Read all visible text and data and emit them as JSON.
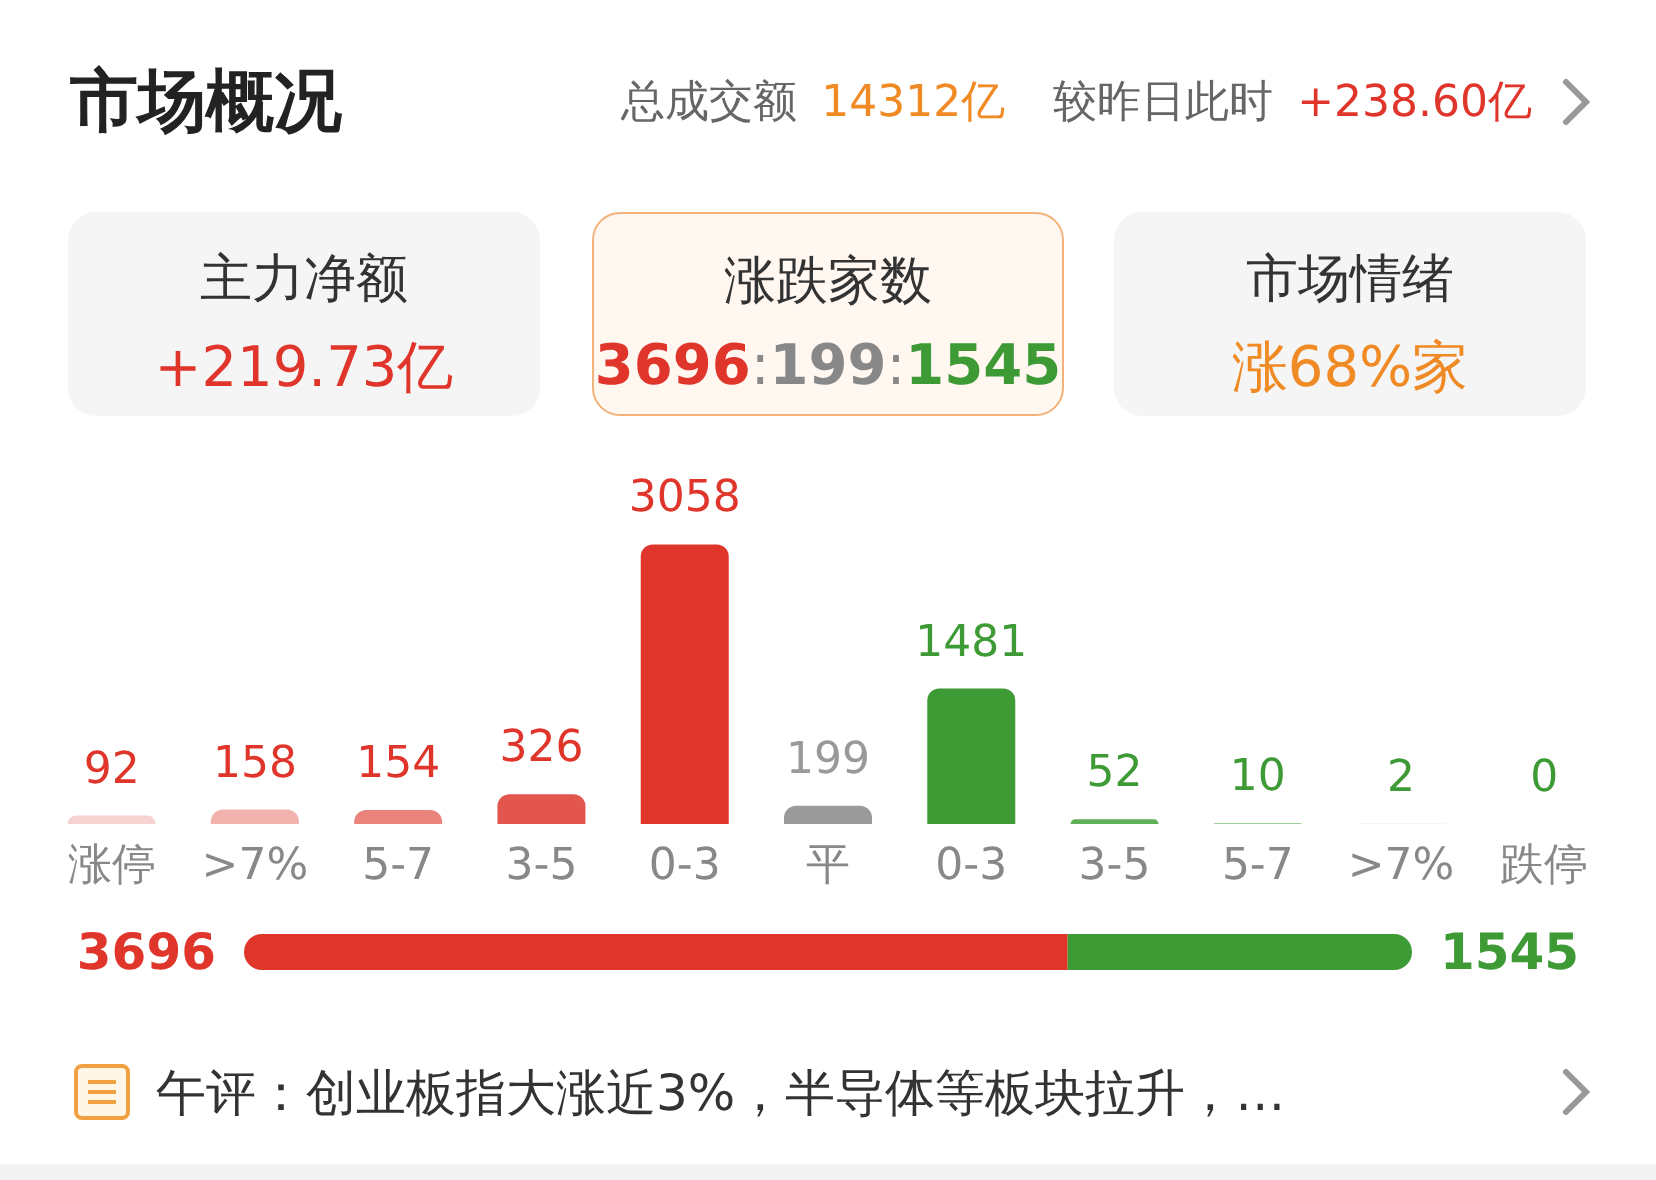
{
  "chart_data": [
    {
      "type": "bar",
      "title": "市场概况",
      "annotations": [
        "总成交额",
        "14312亿",
        "较昨日此时",
        "+238.60亿",
        "主力净额",
        "+219.73亿",
        "涨跌家数",
        "3696:199:1545",
        "市场情绪",
        "涨68%家",
        "午评：创业板指大涨近3%，半导体等板块拉升，…"
      ],
      "categories": [
        "涨停",
        ">7%",
        "5-7",
        "3-5",
        "0-3",
        "平",
        "0-3",
        "3-5",
        "5-7",
        ">7%",
        "跌停"
      ],
      "series": [
        {
          "color": "#e0352b",
          "colors": [
            "#f6d3d1",
            "#f2b3ae",
            "#ea837c",
            "#e3564d",
            "#e0352b",
            null,
            null,
            null,
            null,
            null,
            null
          ],
          "values": [
            92,
            158,
            154,
            326,
            3058,
            null,
            null,
            null,
            null,
            null,
            null
          ]
        },
        {
          "color": "#999999",
          "colors": [
            null,
            null,
            null,
            null,
            null,
            "#9a9a9a",
            null,
            null,
            null,
            null,
            null
          ],
          "values": [
            null,
            null,
            null,
            null,
            null,
            199,
            null,
            null,
            null,
            null,
            null
          ]
        },
        {
          "color": "#3d9a35",
          "colors": [
            null,
            null,
            null,
            null,
            null,
            null,
            "#3d9a35",
            "#5fae58",
            "#9fd09a",
            "#c9e6c6",
            "#dff0dc"
          ],
          "values": [
            null,
            null,
            null,
            null,
            null,
            null,
            1481,
            52,
            10,
            2,
            0
          ]
        }
      ],
      "data_labels": true
    },
    {
      "type": "bar",
      "orientation": "horizontal",
      "stacked": true,
      "categories": [
        null
      ],
      "series": [
        {
          "color": "#e0352b",
          "values": [
            3696
          ]
        },
        {
          "color": "#3d9a35",
          "values": [
            1545
          ]
        }
      ],
      "data_labels": true
    }
  ]
}
